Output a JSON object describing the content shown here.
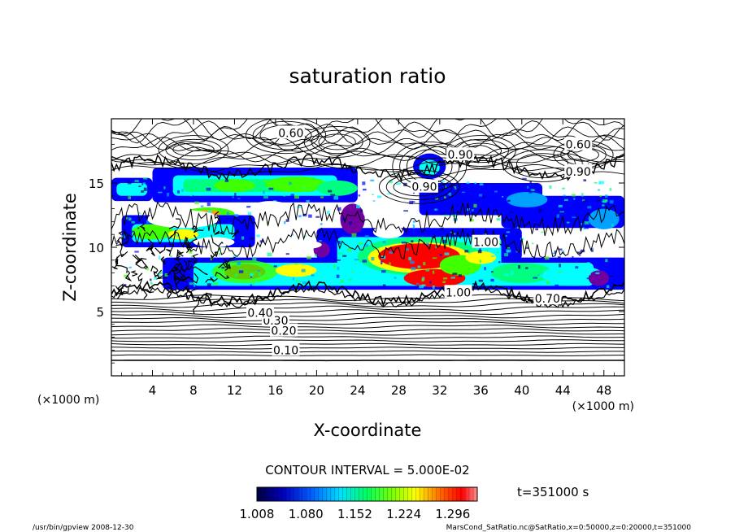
{
  "chart_data": {
    "type": "heatmap",
    "title": "saturation ratio",
    "xlabel": "X-coordinate",
    "ylabel": "Z-coordinate",
    "x_unit": "(×1000 m)",
    "z_unit": "(×1000 m)",
    "xlim": [
      0,
      50
    ],
    "ylim": [
      0,
      20
    ],
    "x_ticks": [
      4,
      8,
      12,
      16,
      20,
      24,
      28,
      32,
      36,
      40,
      44,
      48
    ],
    "y_ticks": [
      5,
      10,
      15
    ],
    "grid": false,
    "contour_interval_text": "CONTOUR INTERVAL = 5.000E-02",
    "shading_min": 1.008,
    "shading_max": 1.332,
    "colorbar_ticks": [
      "1.008",
      "1.080",
      "1.152",
      "1.224",
      "1.296"
    ],
    "colorbar_colors": [
      "#000080",
      "#0000ff",
      "#00a0ff",
      "#00ffff",
      "#00ff80",
      "#40ff00",
      "#ffff00",
      "#ffa000",
      "#ff0000",
      "#ff8080"
    ],
    "contour_labels": [
      {
        "text": "0.10",
        "x": 17.0,
        "z": 2.0
      },
      {
        "text": "0.20",
        "x": 16.8,
        "z": 3.5
      },
      {
        "text": "0.30",
        "x": 16.0,
        "z": 4.3
      },
      {
        "text": "0.40",
        "x": 14.5,
        "z": 4.9
      },
      {
        "text": "0.60",
        "x": 17.5,
        "z": 18.9
      },
      {
        "text": "0.60",
        "x": 45.5,
        "z": 18.0
      },
      {
        "text": "0.90",
        "x": 45.5,
        "z": 15.9
      },
      {
        "text": "0.90",
        "x": 30.5,
        "z": 14.7
      },
      {
        "text": "1.00",
        "x": 36.5,
        "z": 10.4
      },
      {
        "text": "1.00",
        "x": 33.8,
        "z": 6.5
      },
      {
        "text": "0.70",
        "x": 42.5,
        "z": 6.0
      },
      {
        "text": "0.90",
        "x": 34.0,
        "z": 17.2
      }
    ]
  },
  "time_text": "t=351000 s",
  "footer": {
    "left": "/usr/bin/gpview   2008-12-30",
    "right": "MarsCond_SatRatio.nc@SatRatio,x=0:50000,z=0:20000,t=351000"
  }
}
